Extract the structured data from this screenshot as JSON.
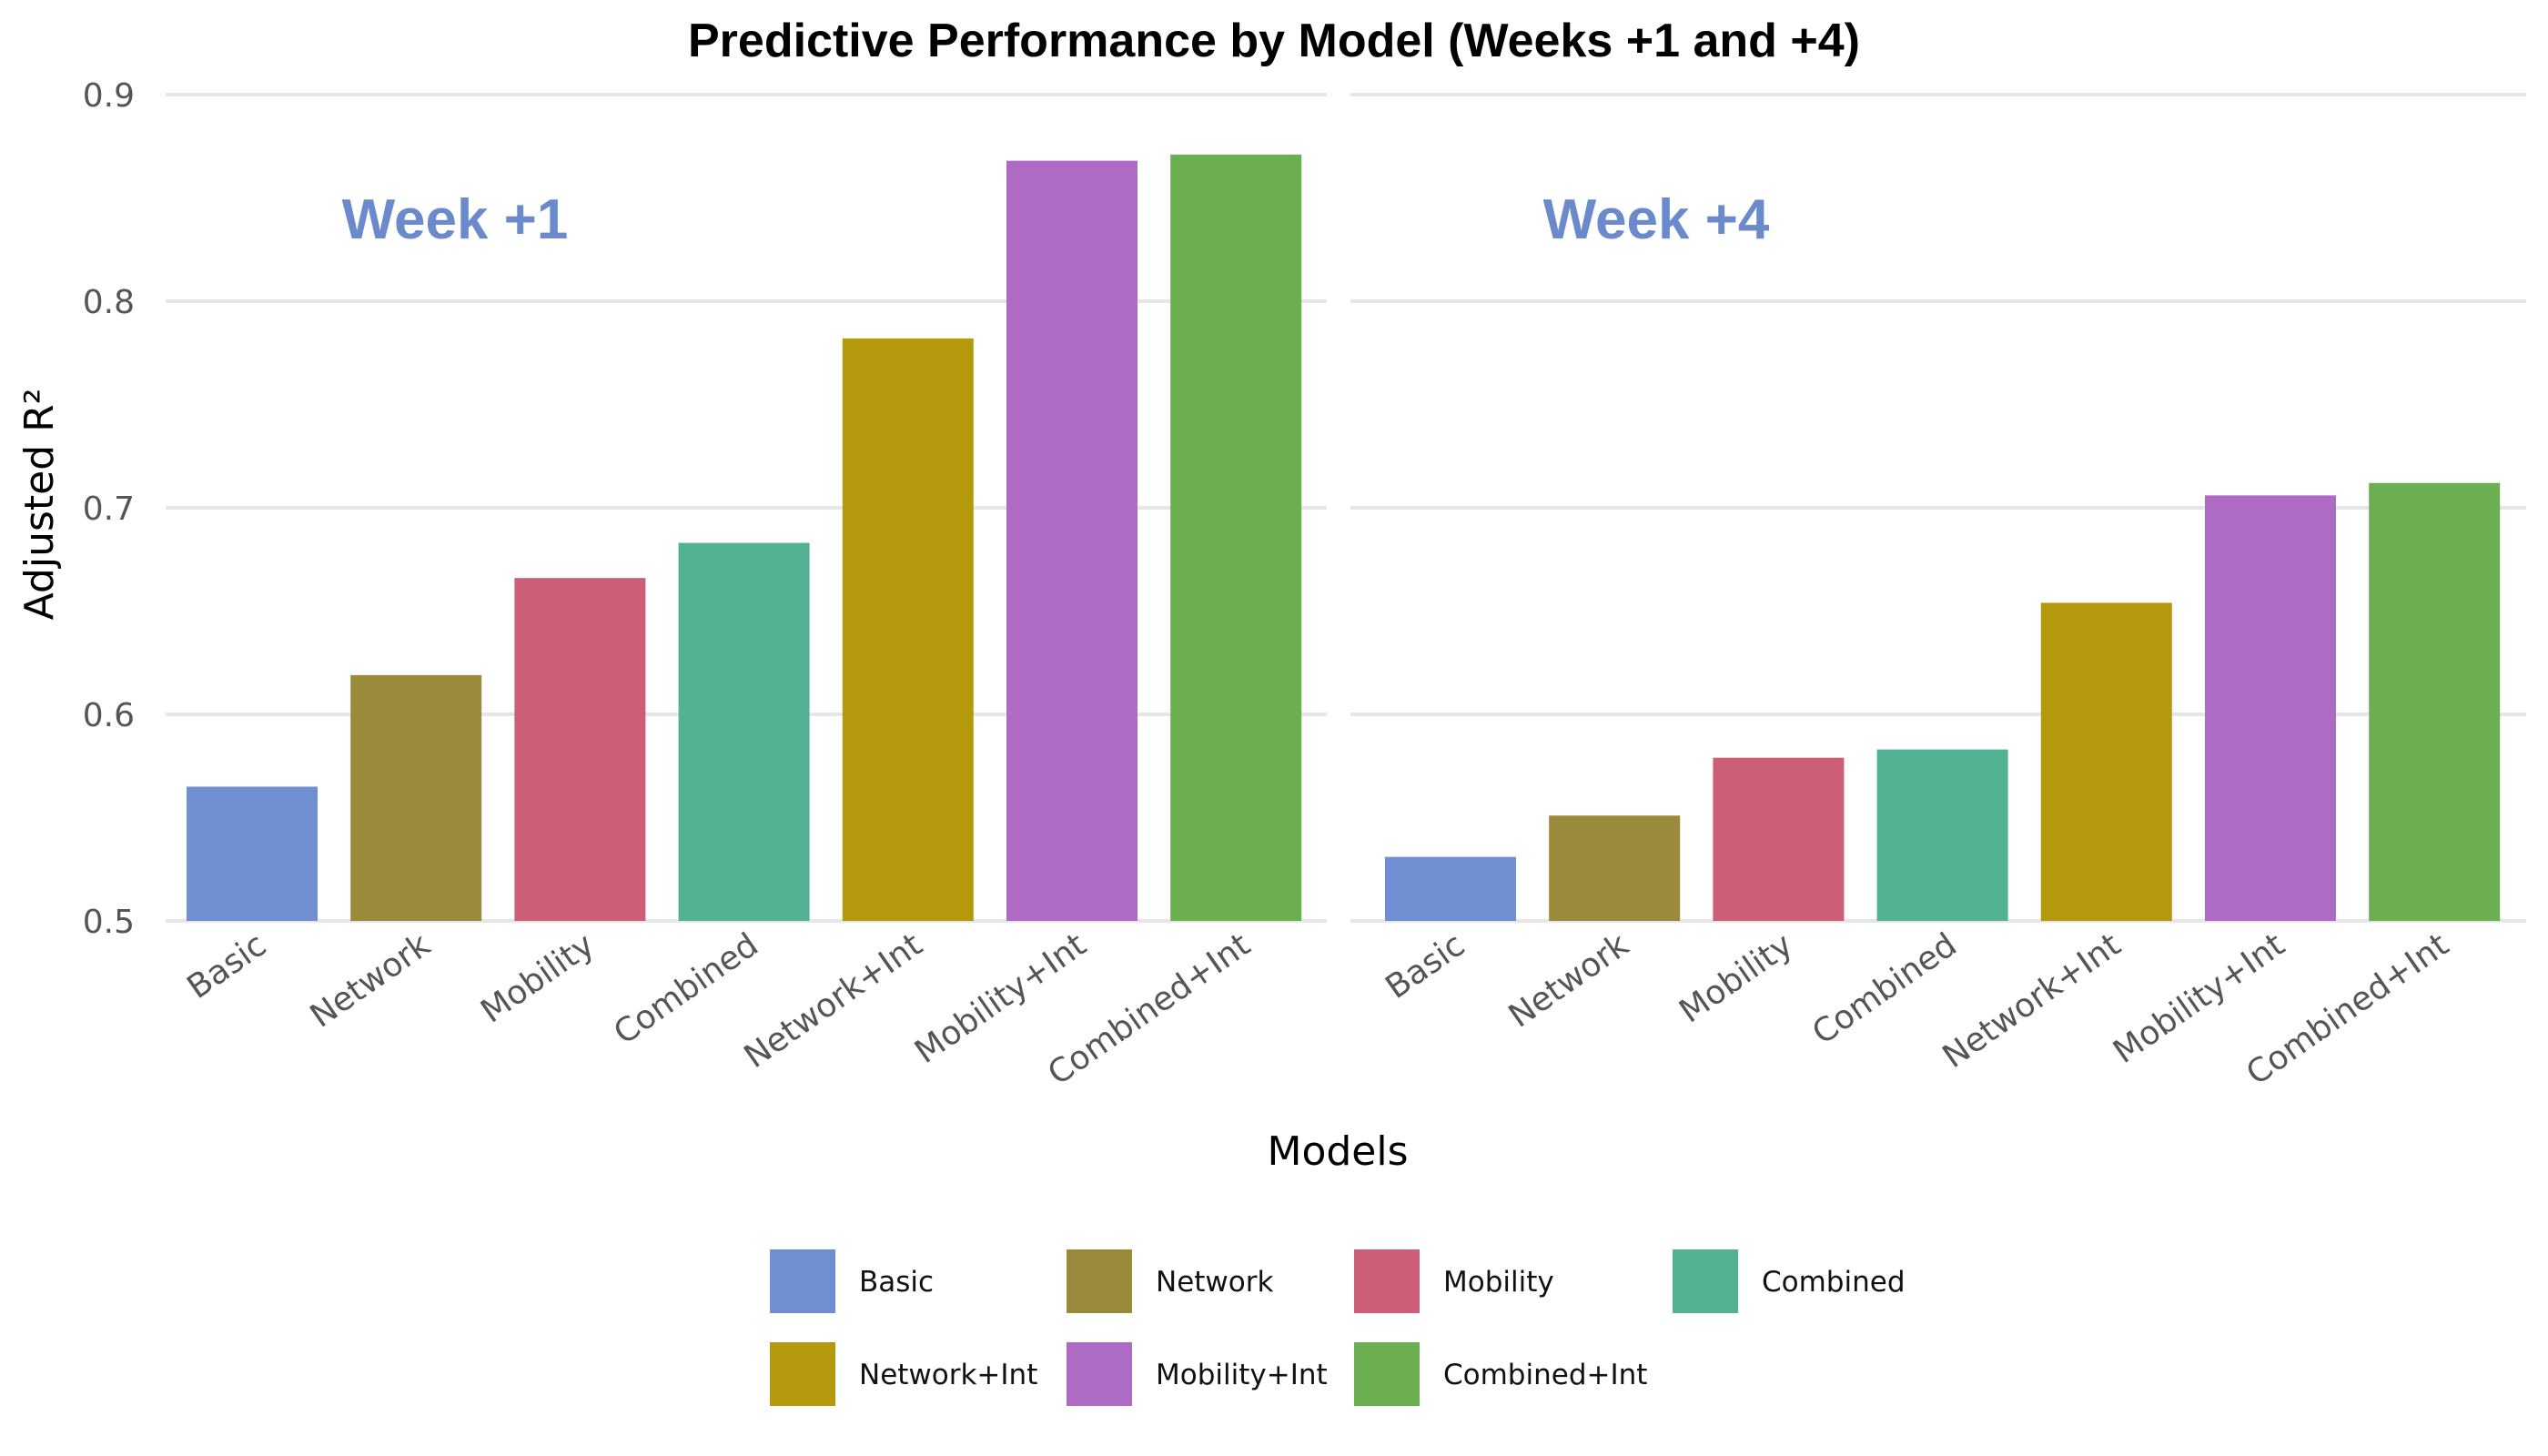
{
  "chart_data": {
    "type": "bar",
    "title": "Predictive Performance by Model (Weeks +1 and +4)",
    "xlabel": "Models",
    "ylabel": "Adjusted R²",
    "ylim": [
      0.5,
      0.9
    ],
    "yticks": [
      "0.5",
      "0.6",
      "0.7",
      "0.8",
      "0.9"
    ],
    "categories": [
      "Basic",
      "Network",
      "Mobility",
      "Combined",
      "Network+Int",
      "Mobility+Int",
      "Combined+Int"
    ],
    "colors": [
      "#6f8fd2",
      "#9a8a3c",
      "#cd5e78",
      "#53b194",
      "#b5990d",
      "#ad6bc3",
      "#6caf50"
    ],
    "panel_label_color": "#6a8acc",
    "grid": true,
    "legend_position": "bottom",
    "panels": [
      {
        "label": "Week +1",
        "values": [
          0.565,
          0.619,
          0.666,
          0.683,
          0.782,
          0.868,
          0.871
        ]
      },
      {
        "label": "Week +4",
        "values": [
          0.531,
          0.551,
          0.579,
          0.583,
          0.654,
          0.706,
          0.712
        ]
      }
    ]
  }
}
